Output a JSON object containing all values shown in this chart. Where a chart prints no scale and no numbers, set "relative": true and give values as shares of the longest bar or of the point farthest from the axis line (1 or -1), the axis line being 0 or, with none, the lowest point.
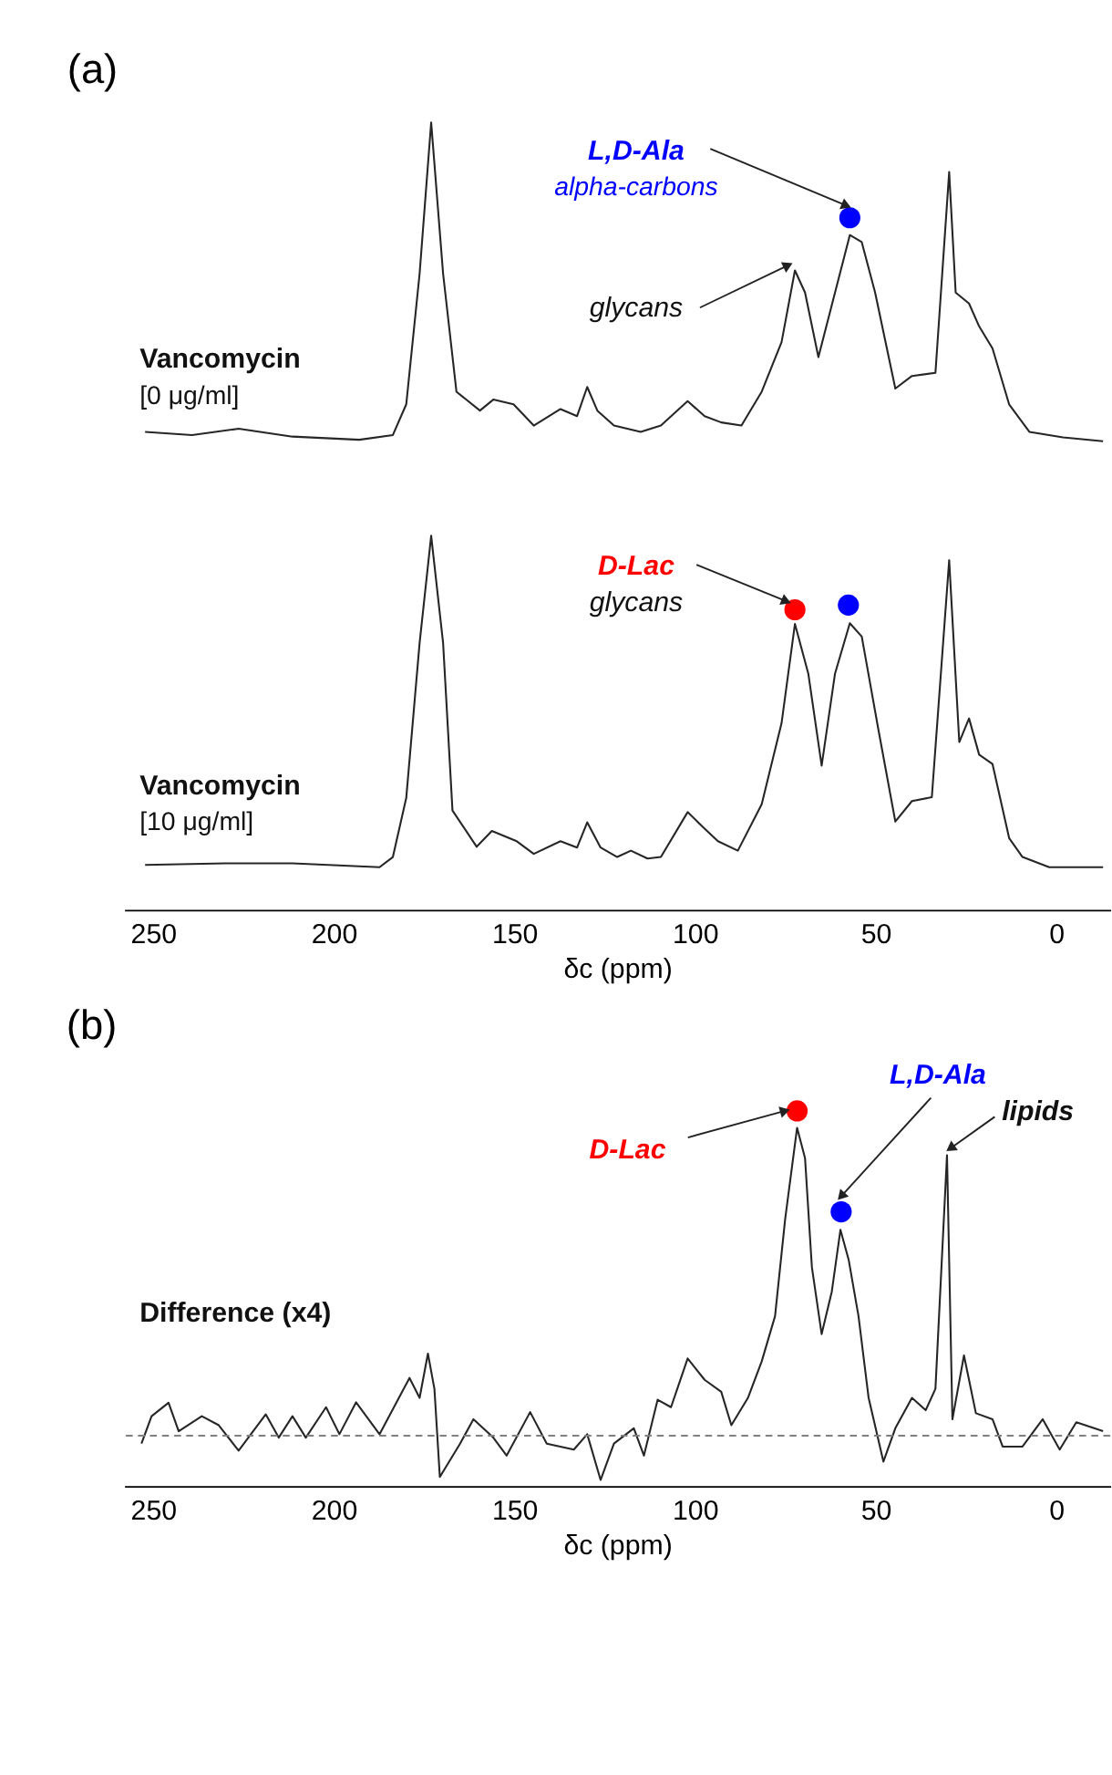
{
  "chart_data": [
    {
      "type": "line",
      "title": "(a)",
      "xlim": [
        258,
        -15
      ],
      "xticks": [
        250,
        200,
        150,
        100,
        50,
        0
      ],
      "xlabel": "δc (ppm)",
      "relative": true,
      "series": [
        {
          "color": "#262626",
          "x": [
            252.2,
            239.2,
            226.3,
            211.4,
            192.9,
            183.6,
            179.9,
            176.2,
            173.0,
            169.7,
            166.0,
            159.5,
            155.8,
            150.2,
            144.6,
            137.2,
            132.6,
            129.8,
            127.0,
            122.4,
            115.0,
            109.4,
            102.0,
            97.3,
            92.7,
            87.1,
            81.5,
            76.0,
            72.3,
            69.5,
            65.8,
            61.2,
            57.1,
            53.8,
            50.1,
            44.5,
            39.9,
            33.4,
            29.6,
            27.8,
            24.1,
            21.3,
            17.6,
            13.0,
            7.4,
            -1.9,
            -13.0
          ],
          "values": [
            0.607,
            0.603,
            0.611,
            0.601,
            0.597,
            0.603,
            0.642,
            0.808,
            1.0,
            0.808,
            0.658,
            0.634,
            0.648,
            0.642,
            0.615,
            0.636,
            0.627,
            0.664,
            0.634,
            0.615,
            0.607,
            0.615,
            0.646,
            0.627,
            0.619,
            0.615,
            0.658,
            0.721,
            0.812,
            0.784,
            0.702,
            0.784,
            0.857,
            0.848,
            0.784,
            0.662,
            0.678,
            0.682,
            0.937,
            0.784,
            0.77,
            0.741,
            0.713,
            0.642,
            0.607,
            0.6,
            0.595
          ]
        },
        {
          "color": "#262626",
          "x": [
            252.2,
            230.0,
            211.4,
            187.3,
            183.6,
            179.9,
            176.2,
            173.0,
            169.7,
            167.1,
            160.4,
            156.2,
            149.3,
            144.6,
            137.2,
            132.6,
            129.8,
            126.1,
            121.5,
            117.7,
            113.1,
            109.4,
            102.0,
            97.3,
            93.6,
            88.1,
            81.5,
            76.0,
            72.3,
            68.6,
            64.9,
            61.2,
            57.1,
            53.8,
            49.2,
            44.5,
            39.9,
            34.4,
            29.6,
            26.8,
            24.1,
            21.3,
            17.6,
            13.0,
            9.3,
            1.9,
            -13.0
          ],
          "values": [
            0.057,
            0.059,
            0.059,
            0.054,
            0.067,
            0.142,
            0.339,
            0.475,
            0.339,
            0.126,
            0.08,
            0.1,
            0.087,
            0.071,
            0.087,
            0.079,
            0.111,
            0.079,
            0.067,
            0.075,
            0.065,
            0.067,
            0.124,
            0.103,
            0.087,
            0.075,
            0.134,
            0.237,
            0.363,
            0.3,
            0.183,
            0.3,
            0.364,
            0.347,
            0.229,
            0.112,
            0.138,
            0.143,
            0.444,
            0.213,
            0.243,
            0.197,
            0.185,
            0.091,
            0.067,
            0.054,
            0.054
          ]
        },
        {
          "type": "scatter",
          "marker": "circle",
          "x": [
            57.1,
            72.3,
            57.5
          ],
          "values": [
            0.879,
            0.381,
            0.387
          ],
          "colors": [
            "#0000ff",
            "#ff0000",
            "#0000ff"
          ]
        }
      ],
      "annotations": [
        "Vancomycin",
        "[0 μg/ml]",
        {
          "text": "L,D-Ala",
          "x": 57.1,
          "y": 0.879
        },
        "alpha-carbons",
        {
          "text": "glycans",
          "x": 72.3,
          "y": 0.812
        },
        "Vancomycin",
        "[10 μg/ml]",
        {
          "text": "D-Lac",
          "x": 72.3,
          "y": 0.381
        },
        "glycans"
      ]
    },
    {
      "type": "line",
      "title": "(b)",
      "xlim": [
        258,
        -15
      ],
      "xticks": [
        250,
        200,
        150,
        100,
        50,
        0
      ],
      "xlabel": "δc (ppm)",
      "relative": true,
      "series": [
        {
          "color": "#262626",
          "x": [
            253.2,
            250.4,
            245.7,
            242.9,
            236.5,
            231.8,
            226.3,
            218.8,
            215.2,
            211.4,
            207.7,
            202.1,
            198.4,
            193.8,
            187.3,
            179.0,
            176.2,
            173.9,
            172.1,
            170.6,
            165.0,
            161.3,
            155.8,
            152.1,
            145.6,
            141.0,
            133.5,
            129.8,
            126.1,
            122.4,
            116.9,
            114.1,
            110.3,
            106.6,
            102.0,
            97.3,
            92.7,
            89.9,
            85.3,
            81.5,
            77.8,
            75.0,
            71.7,
            69.5,
            67.6,
            64.9,
            62.1,
            59.7,
            57.4,
            54.7,
            51.9,
            47.8,
            44.5,
            39.9,
            36.1,
            33.4,
            30.2,
            28.7,
            25.5,
            22.2,
            17.6,
            14.8,
            9.3,
            3.7,
            -1.0,
            -5.6,
            -13.0
          ],
          "values": [
            0.113,
            0.186,
            0.222,
            0.146,
            0.186,
            0.162,
            0.094,
            0.191,
            0.129,
            0.186,
            0.129,
            0.21,
            0.138,
            0.223,
            0.138,
            0.288,
            0.235,
            0.353,
            0.259,
            0.024,
            0.113,
            0.178,
            0.129,
            0.081,
            0.197,
            0.113,
            0.097,
            0.138,
            0.016,
            0.113,
            0.154,
            0.081,
            0.23,
            0.21,
            0.34,
            0.283,
            0.251,
            0.162,
            0.235,
            0.332,
            0.453,
            0.712,
            0.955,
            0.874,
            0.583,
            0.405,
            0.518,
            0.683,
            0.602,
            0.453,
            0.235,
            0.065,
            0.154,
            0.235,
            0.202,
            0.259,
            0.882,
            0.178,
            0.348,
            0.194,
            0.178,
            0.105,
            0.105,
            0.178,
            0.097,
            0.17,
            0.146
          ]
        },
        {
          "type": "scatter",
          "marker": "circle",
          "x": [
            71.7,
            59.5
          ],
          "values": [
            1.0,
            0.731
          ],
          "colors": [
            "#ff0000",
            "#0000ff"
          ]
        }
      ],
      "ref_lines": [
        {
          "axis": "y",
          "value": 0.134,
          "line_style": "dashed",
          "color": "#808080"
        }
      ],
      "annotations": [
        "Difference (x4)",
        {
          "text": "D-Lac",
          "x": 71.7,
          "y": 1.0
        },
        {
          "text": "L,D-Ala",
          "x": 59.5,
          "y": 0.731
        },
        {
          "text": "lipids",
          "x": 30.2,
          "y": 0.882
        }
      ]
    }
  ]
}
